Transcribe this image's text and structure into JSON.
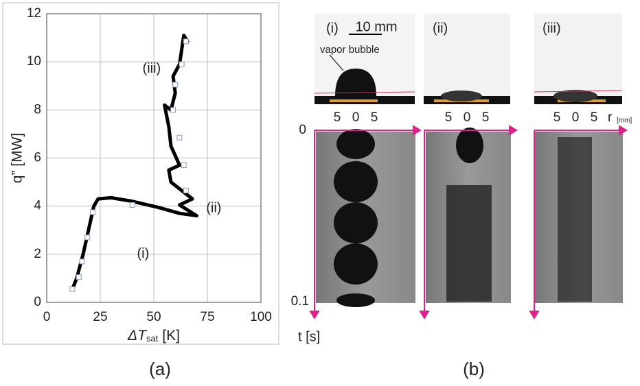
{
  "chart_data": {
    "type": "line",
    "ylabel": "q” [MW]",
    "xlabel": {
      "main": "ΔT",
      "sub": "sat",
      "unit": "[K]"
    },
    "xlim": [
      0,
      100
    ],
    "xticks": [
      0,
      25,
      50,
      75,
      100
    ],
    "ylim": [
      0,
      12
    ],
    "yticks": [
      0,
      2,
      4,
      6,
      8,
      10,
      12
    ],
    "grid": true,
    "series": [
      {
        "style": "trace",
        "color": "#000000",
        "x": [
          12,
          14,
          17,
          20,
          22,
          24,
          30,
          40,
          52,
          62,
          70,
          62,
          68,
          58,
          57,
          62,
          58,
          57,
          55,
          58,
          60,
          59,
          62,
          63,
          64,
          66
        ],
        "values": [
          0.55,
          1,
          2,
          3.2,
          4,
          4.3,
          4.35,
          4.2,
          3.95,
          3.7,
          3.6,
          4.05,
          4.3,
          5.0,
          5.5,
          5.7,
          6.5,
          7.3,
          8.2,
          8.0,
          8.7,
          9.4,
          9.9,
          10.5,
          11.1,
          10.8
        ]
      },
      {
        "style": "marker",
        "color": "#ffffff",
        "x": [
          12,
          15,
          16.5,
          19,
          21.5,
          40,
          65,
          64,
          62,
          59,
          60,
          63,
          65
        ],
        "values": [
          0.55,
          1.05,
          1.7,
          2.7,
          3.75,
          4.05,
          4.65,
          5.7,
          6.85,
          8.0,
          9.05,
          9.9,
          10.85
        ]
      }
    ],
    "annotations": [
      {
        "text": "(i)",
        "x": 45,
        "y": 2.0
      },
      {
        "text": "(ii)",
        "x": 78,
        "y": 3.9
      },
      {
        "text": "(iii)",
        "x": 49,
        "y": 9.7
      }
    ]
  },
  "panel_b": {
    "panels": [
      "(i)",
      "(ii)",
      "(iii)"
    ],
    "scale_bar": "10 mm",
    "bubble_label": "vapor bubble",
    "r_ticks": [
      "5",
      "0",
      "5"
    ],
    "r_label": "r",
    "r_unit": "[mm]",
    "t_ticks": [
      "0",
      "0.1"
    ],
    "t_label": "t [s]"
  },
  "panel_labels": [
    "(a)",
    "(b)"
  ]
}
